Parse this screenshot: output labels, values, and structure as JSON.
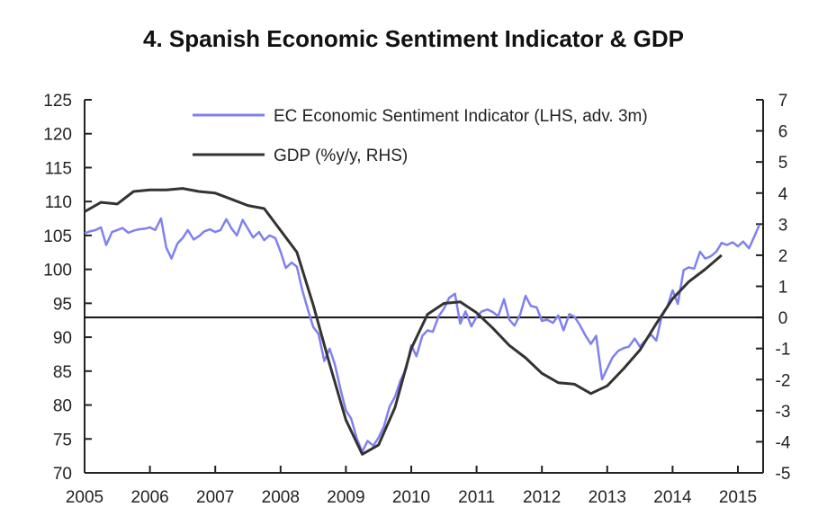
{
  "chart_data": {
    "type": "line",
    "title": "4. Spanish Economic Sentiment Indicator & GDP",
    "xlabel": "",
    "ylabel": "",
    "y2label": "",
    "xlim": [
      2005.0,
      2015.45
    ],
    "ylim": [
      70,
      125
    ],
    "y2lim": [
      -5,
      7
    ],
    "x_ticks": [
      "2005",
      "2006",
      "2007",
      "2008",
      "2009",
      "2010",
      "2011",
      "2012",
      "2013",
      "2014",
      "2015"
    ],
    "y_ticks": [
      "70",
      "75",
      "80",
      "85",
      "90",
      "95",
      "100",
      "105",
      "110",
      "115",
      "120",
      "125"
    ],
    "y2_ticks": [
      "-5",
      "-4",
      "-3",
      "-2",
      "-1",
      "0",
      "1",
      "2",
      "3",
      "4",
      "5",
      "6",
      "7"
    ],
    "zero_line_y2": 0,
    "grid": false,
    "legend_position": "top-center",
    "series": [
      {
        "name": "EC Economic Sentiment Indicator (LHS, adv. 3m)",
        "axis": "left",
        "color": "#8080f0",
        "x": [
          2005.0,
          2005.08,
          2005.17,
          2005.25,
          2005.33,
          2005.42,
          2005.5,
          2005.58,
          2005.67,
          2005.75,
          2005.83,
          2005.92,
          2006.0,
          2006.08,
          2006.17,
          2006.25,
          2006.33,
          2006.42,
          2006.5,
          2006.58,
          2006.67,
          2006.75,
          2006.83,
          2006.92,
          2007.0,
          2007.08,
          2007.17,
          2007.25,
          2007.33,
          2007.42,
          2007.5,
          2007.58,
          2007.67,
          2007.75,
          2007.83,
          2007.92,
          2008.0,
          2008.08,
          2008.17,
          2008.25,
          2008.33,
          2008.42,
          2008.5,
          2008.58,
          2008.67,
          2008.75,
          2008.83,
          2008.92,
          2009.0,
          2009.08,
          2009.17,
          2009.25,
          2009.33,
          2009.42,
          2009.5,
          2009.58,
          2009.67,
          2009.75,
          2009.83,
          2009.92,
          2010.0,
          2010.08,
          2010.17,
          2010.25,
          2010.33,
          2010.42,
          2010.5,
          2010.58,
          2010.67,
          2010.75,
          2010.83,
          2010.92,
          2011.0,
          2011.08,
          2011.17,
          2011.25,
          2011.33,
          2011.42,
          2011.5,
          2011.58,
          2011.67,
          2011.75,
          2011.83,
          2011.92,
          2012.0,
          2012.08,
          2012.17,
          2012.25,
          2012.33,
          2012.42,
          2012.5,
          2012.58,
          2012.67,
          2012.75,
          2012.83,
          2012.92,
          2013.0,
          2013.08,
          2013.17,
          2013.25,
          2013.33,
          2013.42,
          2013.5,
          2013.58,
          2013.67,
          2013.75,
          2013.83,
          2013.92,
          2014.0,
          2014.08,
          2014.17,
          2014.25,
          2014.33,
          2014.42,
          2014.5,
          2014.58,
          2014.67,
          2014.75,
          2014.83,
          2014.92,
          2015.0,
          2015.08,
          2015.17,
          2015.25,
          2015.33
        ],
        "values": [
          105.3,
          105.6,
          105.8,
          106.2,
          103.6,
          105.5,
          105.8,
          106.1,
          105.4,
          105.7,
          105.9,
          106.0,
          106.2,
          105.8,
          107.5,
          103.2,
          101.6,
          103.8,
          104.6,
          105.8,
          104.4,
          104.9,
          105.6,
          105.9,
          105.5,
          105.8,
          107.4,
          106.0,
          105.0,
          107.3,
          106.0,
          104.7,
          105.5,
          104.3,
          105.0,
          104.6,
          102.6,
          100.2,
          101.0,
          100.4,
          97.0,
          94.0,
          91.5,
          90.5,
          86.5,
          88.3,
          86.0,
          82.2,
          79.2,
          78.0,
          75.0,
          73.1,
          74.7,
          74.0,
          75.2,
          76.8,
          79.8,
          81.2,
          83.5,
          85.3,
          88.8,
          87.2,
          90.2,
          91.0,
          90.8,
          93.1,
          94.2,
          95.8,
          96.4,
          92.0,
          93.8,
          91.6,
          93.0,
          93.8,
          94.1,
          93.7,
          93.1,
          95.6,
          92.6,
          91.7,
          93.4,
          96.1,
          94.6,
          94.4,
          92.4,
          92.6,
          92.1,
          93.2,
          91.0,
          93.4,
          93.0,
          91.8,
          90.2,
          89.0,
          90.2,
          83.8,
          85.4,
          87.0,
          88.0,
          88.4,
          88.6,
          89.8,
          88.6,
          89.5,
          90.4,
          89.5,
          93.0,
          94.5,
          96.9,
          94.9,
          99.9,
          100.3,
          100.1,
          102.6,
          101.6,
          101.9,
          102.6,
          103.9,
          103.6,
          104.0,
          103.4,
          104.1,
          103.1,
          104.8,
          106.6
        ]
      },
      {
        "name": "GDP (%y/y, RHS)",
        "axis": "right",
        "color": "#333333",
        "x": [
          2005.0,
          2005.25,
          2005.5,
          2005.75,
          2006.0,
          2006.25,
          2006.5,
          2006.75,
          2007.0,
          2007.25,
          2007.5,
          2007.75,
          2008.0,
          2008.25,
          2008.5,
          2008.75,
          2009.0,
          2009.25,
          2009.5,
          2009.75,
          2010.0,
          2010.25,
          2010.5,
          2010.75,
          2011.0,
          2011.25,
          2011.5,
          2011.75,
          2012.0,
          2012.25,
          2012.5,
          2012.75,
          2013.0,
          2013.25,
          2013.5,
          2013.75,
          2014.0,
          2014.25,
          2014.5,
          2014.75
        ],
        "values": [
          3.4,
          3.7,
          3.65,
          4.05,
          4.1,
          4.1,
          4.15,
          4.05,
          4.0,
          3.8,
          3.6,
          3.5,
          2.8,
          2.1,
          0.4,
          -1.5,
          -3.3,
          -4.4,
          -4.1,
          -2.9,
          -1.0,
          0.1,
          0.45,
          0.5,
          0.15,
          -0.35,
          -0.9,
          -1.3,
          -1.8,
          -2.1,
          -2.15,
          -2.45,
          -2.2,
          -1.65,
          -1.05,
          -0.2,
          0.6,
          1.15,
          1.55,
          2.0
        ]
      }
    ]
  }
}
